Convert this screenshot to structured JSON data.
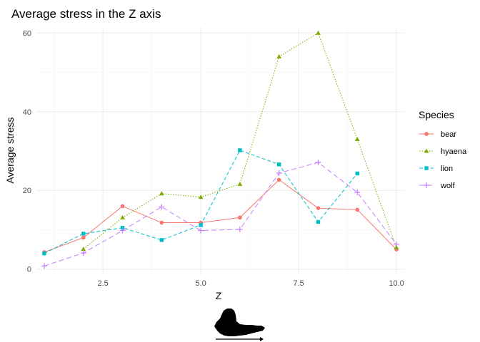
{
  "chart_data": {
    "type": "line",
    "title": "Average stress in the Z axis",
    "xlabel": "Z",
    "ylabel": "Average stress",
    "xlim": [
      0.8,
      10.2
    ],
    "ylim": [
      -1.5,
      61.5
    ],
    "x_ticks": [
      2.5,
      5.0,
      7.5,
      10.0
    ],
    "x_tick_labels": [
      "2.5",
      "5.0",
      "7.5",
      "10.0"
    ],
    "y_ticks": [
      0,
      20,
      40,
      60
    ],
    "y_tick_labels": [
      "0",
      "20",
      "40",
      "60"
    ],
    "grid": true,
    "legend_title": "Species",
    "legend_position": "right",
    "series": [
      {
        "name": "bear",
        "color": "#F8766D",
        "marker": "circle",
        "dash": "solid",
        "x": [
          1,
          2,
          3,
          4,
          5,
          6,
          7,
          8,
          9,
          10
        ],
        "values": [
          4.3,
          8.0,
          16.0,
          11.8,
          11.8,
          13.1,
          22.7,
          15.5,
          15.1,
          5.0
        ]
      },
      {
        "name": "hyaena",
        "color": "#7CAE00",
        "marker": "triangle",
        "dash": "dotted",
        "x": [
          2,
          3,
          4,
          5,
          6,
          7,
          8,
          9,
          10
        ],
        "values": [
          5.1,
          13.1,
          19.2,
          18.3,
          21.6,
          54.0,
          60.0,
          33.0,
          5.5
        ]
      },
      {
        "name": "lion",
        "color": "#00BFC4",
        "marker": "square",
        "dash": "dashed",
        "x": [
          1,
          2,
          3,
          4,
          5,
          6,
          7,
          8,
          9
        ],
        "values": [
          4.0,
          9.0,
          10.5,
          7.4,
          11.2,
          30.2,
          26.6,
          12.0,
          24.3
        ]
      },
      {
        "name": "wolf",
        "color": "#C77CFF",
        "marker": "plus",
        "dash": "longdash",
        "x": [
          1,
          2,
          3,
          4,
          5,
          6,
          7,
          8,
          9,
          10
        ],
        "values": [
          0.8,
          4.1,
          9.8,
          15.8,
          9.8,
          10.1,
          24.4,
          27.1,
          19.5,
          6.3
        ]
      }
    ]
  },
  "decoration": {
    "logo": "bone-silhouette-icon",
    "arrow": "arrow-right-icon"
  }
}
